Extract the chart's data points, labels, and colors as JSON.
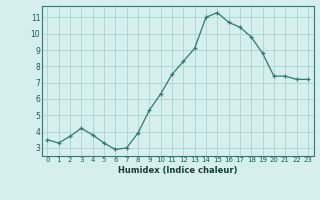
{
  "x": [
    0,
    1,
    2,
    3,
    4,
    5,
    6,
    7,
    8,
    9,
    10,
    11,
    12,
    13,
    14,
    15,
    16,
    17,
    18,
    19,
    20,
    21,
    22,
    23
  ],
  "y": [
    3.5,
    3.3,
    3.7,
    4.2,
    3.8,
    3.3,
    2.9,
    3.0,
    3.9,
    5.3,
    6.3,
    7.5,
    8.3,
    9.1,
    11.0,
    11.3,
    10.7,
    10.4,
    9.8,
    8.8,
    7.4,
    7.4,
    7.2,
    7.2
  ],
  "xlabel": "Humidex (Indice chaleur)",
  "ylim": [
    2.5,
    11.7
  ],
  "xlim": [
    -0.5,
    23.5
  ],
  "yticks": [
    3,
    4,
    5,
    6,
    7,
    8,
    9,
    10,
    11
  ],
  "xticks": [
    0,
    1,
    2,
    3,
    4,
    5,
    6,
    7,
    8,
    9,
    10,
    11,
    12,
    13,
    14,
    15,
    16,
    17,
    18,
    19,
    20,
    21,
    22,
    23
  ],
  "line_color": "#2e7d6e",
  "bg_color": "#d4efec",
  "grid_color": "#b0d8d4",
  "marker": "+"
}
